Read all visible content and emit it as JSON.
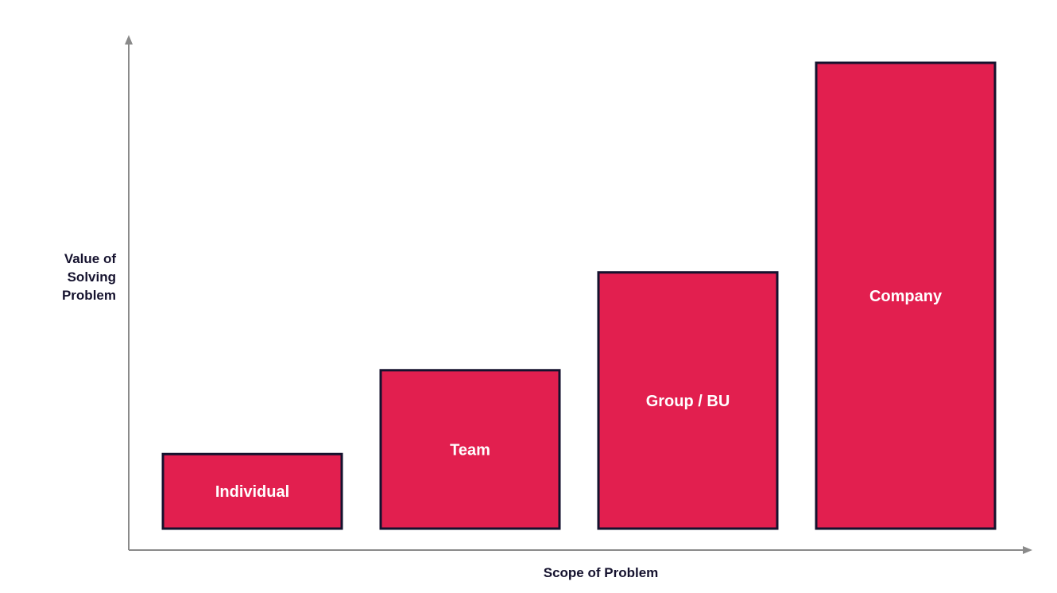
{
  "chart_data": {
    "type": "bar",
    "categories": [
      "Individual",
      "Team",
      "Group / BU",
      "Company"
    ],
    "values": [
      16,
      34,
      55,
      100
    ],
    "ylim": [
      0,
      100
    ],
    "xlabel": "Scope of Problem",
    "ylabel": "Value of Solving Problem",
    "ylabel_lines": [
      "Value of",
      "Solving",
      "Problem"
    ],
    "axis_ticks": false,
    "grid": false,
    "legend": "none",
    "colors": {
      "bar_fill": "#e21f4f",
      "bar_stroke": "#15122e",
      "axis": "#8a8a8a",
      "label_text": "#ffffff",
      "axis_text": "#15122e"
    }
  }
}
